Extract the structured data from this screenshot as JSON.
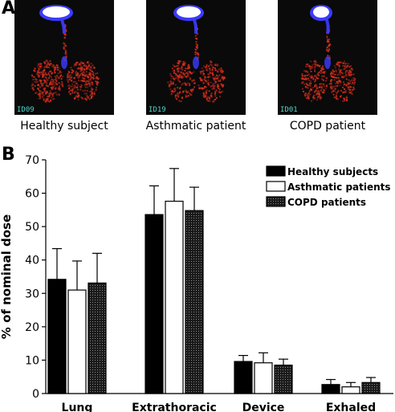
{
  "panel_a": {
    "letter": "A",
    "scans": [
      {
        "id_label": "ID09",
        "caption": "Healthy subject"
      },
      {
        "id_label": "ID19",
        "caption": "Asthmatic patient"
      },
      {
        "id_label": "ID01",
        "caption": "COPD patient"
      }
    ],
    "colors": {
      "background": "#0a0a0a",
      "deposit": "#e0301e",
      "hot": "#3b3bff",
      "core": "#ffffff",
      "id_label": "#4fd6c8"
    }
  },
  "panel_b": {
    "letter": "B"
  },
  "chart_data": {
    "type": "bar",
    "ylabel": "% of nominal dose",
    "xlabel": "",
    "ylim": [
      0,
      70
    ],
    "yticks": [
      0,
      10,
      20,
      30,
      40,
      50,
      60,
      70
    ],
    "categories": [
      "Lung",
      "Extrathoracic",
      "Device",
      "Exhaled"
    ],
    "series": [
      {
        "name": "Healthy subjects",
        "fill": "#000000",
        "pattern": "solid",
        "values": [
          34.2,
          53.6,
          9.6,
          2.7
        ],
        "errors": [
          9.2,
          8.6,
          1.8,
          1.5
        ]
      },
      {
        "name": "Asthmatic patients",
        "fill": "#ffffff",
        "pattern": "open",
        "values": [
          31.0,
          57.6,
          9.2,
          2.0
        ],
        "errors": [
          8.7,
          9.8,
          3.0,
          1.3
        ]
      },
      {
        "name": "COPD patients",
        "fill": "#3a3a3a",
        "pattern": "dotted",
        "values": [
          33.1,
          54.8,
          8.5,
          3.3
        ],
        "errors": [
          8.9,
          7.0,
          1.8,
          1.5
        ]
      }
    ],
    "legend_position": "top-right",
    "grid": false
  }
}
